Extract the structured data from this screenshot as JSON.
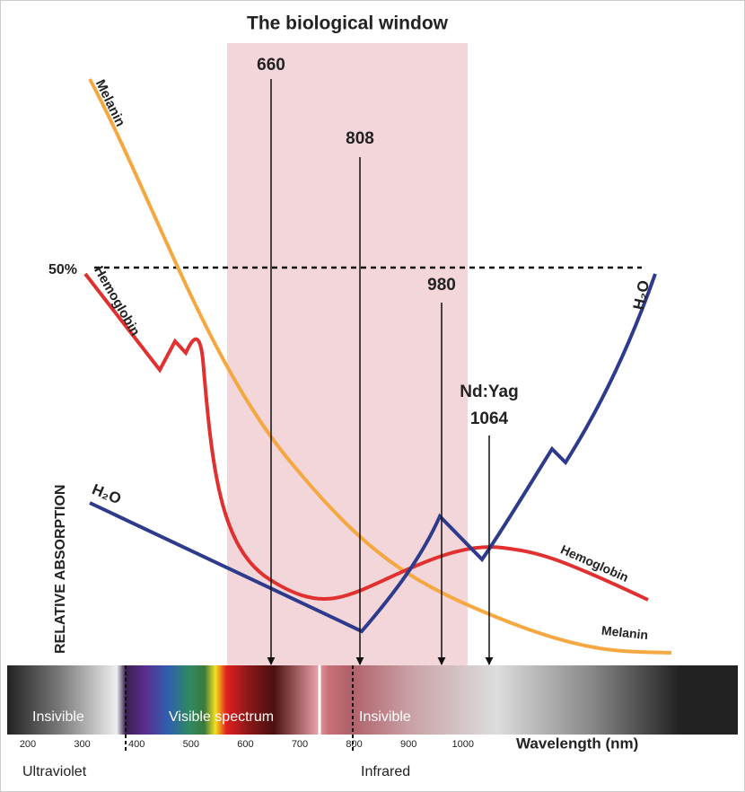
{
  "title": "The biological window",
  "y_axis_label": "RELATIVE ABSORPTION",
  "x_axis_label": "Wavelength (nm)",
  "reference_line": "50%",
  "markers": [
    {
      "lines": [
        "660"
      ]
    },
    {
      "lines": [
        "808"
      ]
    },
    {
      "lines": [
        "980"
      ]
    },
    {
      "lines": [
        "Nd:Yag",
        "1064"
      ]
    }
  ],
  "curve_labels": {
    "melanin_left": "Melanin",
    "hemoglobin_left": "Hemoglobin",
    "water_left": "H₂O",
    "water_right": "H₂O",
    "hemoglobin_right": "Hemoglobin",
    "melanin_right": "Melanin"
  },
  "spectrum_labels": [
    "Insivible",
    "Visible spectrum",
    "Insivible"
  ],
  "xticks": [
    "200",
    "300",
    "400",
    "500",
    "600",
    "700",
    "800",
    "900",
    "1000"
  ],
  "regions": [
    "Ultraviolet",
    "Infrared"
  ]
}
